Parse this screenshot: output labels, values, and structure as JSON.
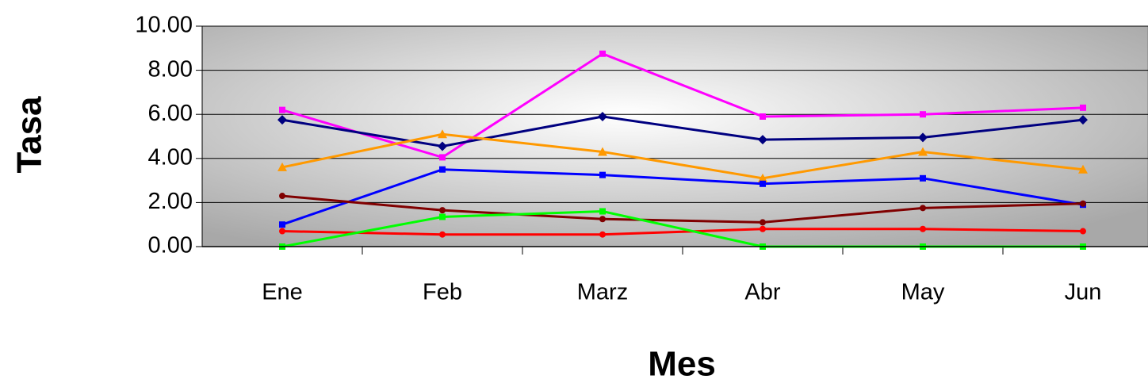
{
  "chart_data": {
    "type": "line",
    "x_label": "Mes",
    "y_label": "Tasa",
    "categories": [
      "Ene",
      "Feb",
      "Marz",
      "Abr",
      "May",
      "Jun"
    ],
    "ylim": [
      0,
      10
    ],
    "yticks": [
      {
        "value": 0,
        "label": "0.00"
      },
      {
        "value": 2,
        "label": "2.00"
      },
      {
        "value": 4,
        "label": "4.00"
      },
      {
        "value": 6,
        "label": "6.00"
      },
      {
        "value": 8,
        "label": "8.00"
      },
      {
        "value": 10,
        "label": "10.00"
      }
    ],
    "grid": true,
    "series": [
      {
        "color": "#ff00ff",
        "marker": "square",
        "values": [
          6.2,
          4.05,
          8.75,
          5.9,
          6.0,
          6.3
        ]
      },
      {
        "color": "#000080",
        "marker": "diamond",
        "values": [
          5.75,
          4.55,
          5.9,
          4.85,
          4.95,
          5.75
        ]
      },
      {
        "color": "#ff9900",
        "marker": "triangle",
        "values": [
          3.6,
          5.1,
          4.3,
          3.1,
          4.3,
          3.5
        ]
      },
      {
        "color": "#0000ff",
        "marker": "square",
        "values": [
          1.0,
          3.5,
          3.25,
          2.85,
          3.1,
          1.9
        ]
      },
      {
        "color": "#800000",
        "marker": "circle",
        "values": [
          2.3,
          1.65,
          1.25,
          1.1,
          1.75,
          1.95
        ]
      },
      {
        "color": "#ff0000",
        "marker": "circle",
        "values": [
          0.7,
          0.55,
          0.55,
          0.8,
          0.8,
          0.7
        ]
      },
      {
        "color": "#00ff00",
        "marker": "square",
        "values": [
          0,
          1.35,
          1.6,
          0,
          0,
          0
        ]
      }
    ]
  }
}
